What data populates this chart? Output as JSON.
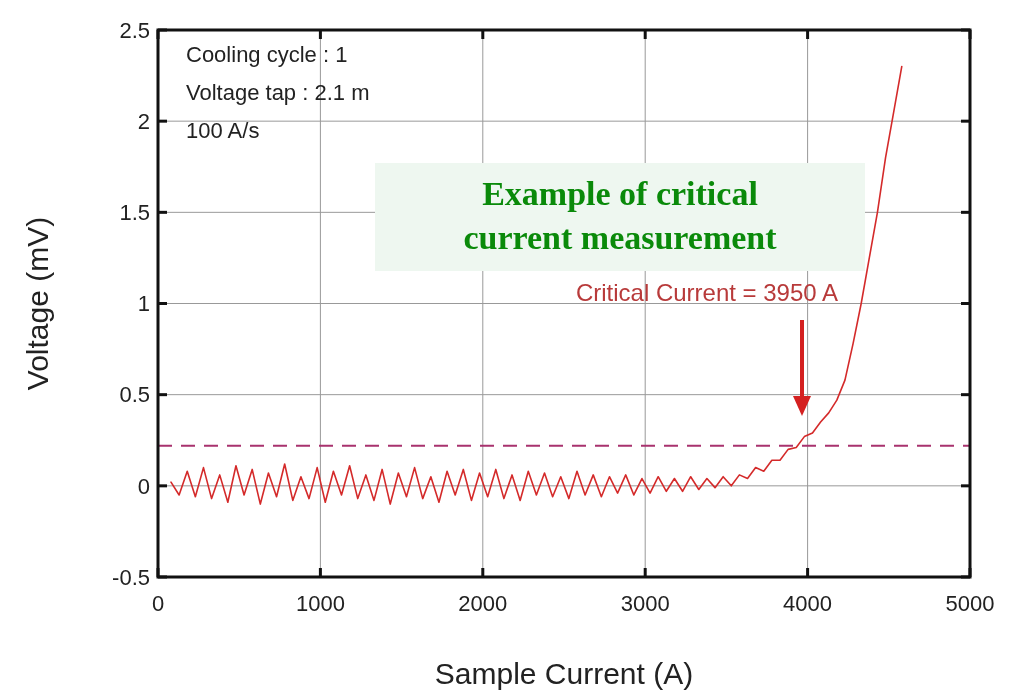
{
  "chart_data": {
    "type": "line",
    "xlabel": "Sample Current (A)",
    "ylabel": "Voltage (mV)",
    "xlim": [
      0,
      5000
    ],
    "xticks": [
      0,
      1000,
      2000,
      3000,
      4000,
      5000
    ],
    "ylim": [
      -0.5,
      2.5
    ],
    "yticks": [
      -0.5,
      0,
      0.5,
      1,
      1.5,
      2,
      2.5
    ],
    "grid": true,
    "marker": "none",
    "line_style": "solid",
    "x": [
      80,
      130,
      180,
      230,
      280,
      330,
      380,
      430,
      480,
      530,
      580,
      630,
      680,
      730,
      780,
      830,
      880,
      930,
      980,
      1030,
      1080,
      1130,
      1180,
      1230,
      1280,
      1330,
      1380,
      1430,
      1480,
      1530,
      1580,
      1630,
      1680,
      1730,
      1780,
      1830,
      1880,
      1930,
      1980,
      2030,
      2080,
      2130,
      2180,
      2230,
      2280,
      2330,
      2380,
      2430,
      2480,
      2530,
      2580,
      2630,
      2680,
      2730,
      2780,
      2830,
      2880,
      2930,
      2980,
      3030,
      3080,
      3130,
      3180,
      3230,
      3280,
      3330,
      3380,
      3430,
      3480,
      3530,
      3580,
      3630,
      3680,
      3730,
      3780,
      3830,
      3880,
      3930,
      3980,
      4030,
      4080,
      4130,
      4180,
      4230,
      4280,
      4330,
      4380,
      4430,
      4480,
      4530,
      4580
    ],
    "series": [
      {
        "color": "#d42a2a",
        "values": [
          0.02,
          -0.05,
          0.08,
          -0.06,
          0.1,
          -0.07,
          0.06,
          -0.09,
          0.11,
          -0.05,
          0.09,
          -0.1,
          0.07,
          -0.06,
          0.12,
          -0.08,
          0.05,
          -0.07,
          0.1,
          -0.09,
          0.08,
          -0.05,
          0.11,
          -0.07,
          0.06,
          -0.08,
          0.09,
          -0.1,
          0.07,
          -0.06,
          0.1,
          -0.07,
          0.05,
          -0.09,
          0.08,
          -0.05,
          0.09,
          -0.08,
          0.07,
          -0.06,
          0.09,
          -0.07,
          0.06,
          -0.08,
          0.08,
          -0.05,
          0.07,
          -0.06,
          0.05,
          -0.07,
          0.08,
          -0.05,
          0.06,
          -0.06,
          0.05,
          -0.04,
          0.06,
          -0.05,
          0.04,
          -0.04,
          0.05,
          -0.03,
          0.04,
          -0.03,
          0.05,
          -0.02,
          0.04,
          -0.01,
          0.05,
          0.0,
          0.06,
          0.04,
          0.1,
          0.08,
          0.14,
          0.14,
          0.2,
          0.21,
          0.27,
          0.29,
          0.35,
          0.4,
          0.47,
          0.58,
          0.78,
          1.0,
          1.25,
          1.5,
          1.8,
          2.05,
          2.3
        ]
      }
    ],
    "ref_lines": [
      {
        "axis": "y",
        "value": 0.22,
        "color": "#a8326e",
        "line_style": "dashed"
      }
    ],
    "annotations": [
      "Cooling cycle : 1",
      "Voltage tap : 2.1 m",
      "100 A/s",
      "Example of critical current measurement",
      "Critical Current = 3950 A"
    ]
  }
}
